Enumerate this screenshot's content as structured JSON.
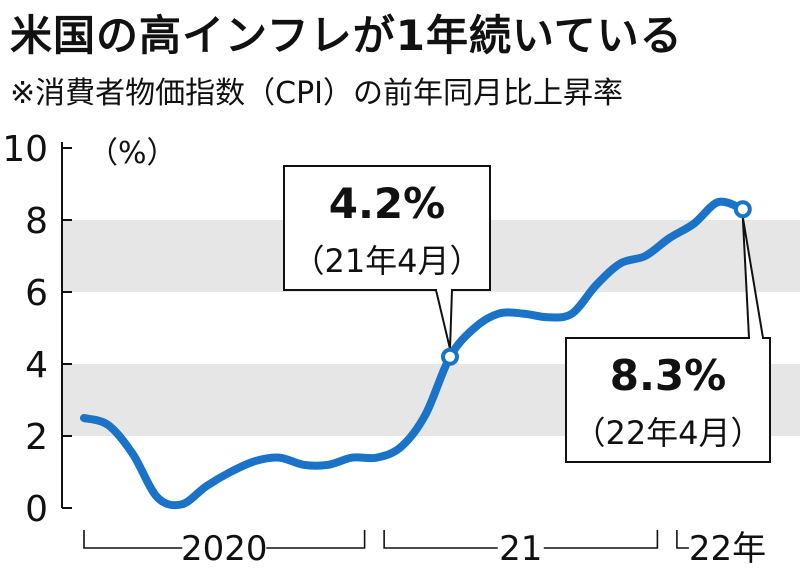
{
  "title": "米国の高インフレが1年続いている",
  "subtitle": "※消費者物価指数（CPI）の前年同月比上昇率",
  "colors": {
    "line": "#1a73c7",
    "band": "#e6e6e6",
    "text": "#111111",
    "marker_fill": "#ffffff"
  },
  "chart_data": {
    "type": "line",
    "title": "米国の高インフレが1年続いている",
    "subtitle": "※消費者物価指数（CPI）の前年同月比上昇率",
    "ylabel": "",
    "unit_label": "（%）",
    "ylim": [
      0,
      10
    ],
    "yticks": [
      0,
      2,
      4,
      6,
      8,
      10
    ],
    "grid": "alternating horizontal bands",
    "x": [
      "2020-01",
      "2020-02",
      "2020-03",
      "2020-04",
      "2020-05",
      "2020-06",
      "2020-07",
      "2020-08",
      "2020-09",
      "2020-10",
      "2020-11",
      "2020-12",
      "2021-01",
      "2021-02",
      "2021-03",
      "2021-04",
      "2021-05",
      "2021-06",
      "2021-07",
      "2021-08",
      "2021-09",
      "2021-10",
      "2021-11",
      "2021-12",
      "2022-01",
      "2022-02",
      "2022-03",
      "2022-04"
    ],
    "series": [
      {
        "values": [
          2.5,
          2.3,
          1.5,
          0.3,
          0.1,
          0.6,
          1.0,
          1.3,
          1.4,
          1.2,
          1.2,
          1.4,
          1.4,
          1.7,
          2.6,
          4.2,
          5.0,
          5.4,
          5.4,
          5.3,
          5.4,
          6.2,
          6.8,
          7.0,
          7.5,
          7.9,
          8.5,
          8.3
        ]
      }
    ],
    "year_labels": [
      "2020",
      "21",
      "22年"
    ],
    "annotations": [
      {
        "value": "4.2%",
        "label": "（21年4月）",
        "index": 15
      },
      {
        "value": "8.3%",
        "label": "（22年4月）",
        "index": 27
      }
    ]
  }
}
